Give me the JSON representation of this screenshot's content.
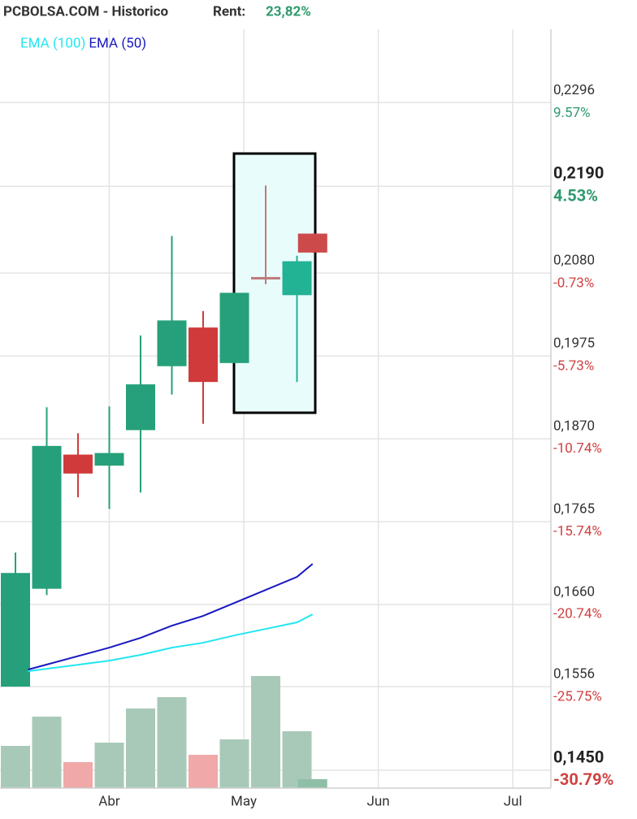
{
  "chart_data": {
    "type": "candlestick",
    "title": "PCBOLSA.COM - Historico",
    "subtitle_label": "Rent:",
    "subtitle_value": "23,82%",
    "x": [
      0,
      1,
      2,
      3,
      4,
      5,
      6,
      7,
      8,
      9,
      9.5
    ],
    "open": [
      0.1556,
      0.168,
      0.185,
      0.1836,
      0.1881,
      0.1962,
      0.2011,
      0.1966,
      0.2075,
      0.2052,
      0.213
    ],
    "high": [
      0.1726,
      0.191,
      0.1877,
      0.1911,
      0.2001,
      0.2127,
      0.2032,
      0.2055,
      0.2191,
      0.2102,
      0.213
    ],
    "low": [
      0.1556,
      0.1672,
      0.1796,
      0.1781,
      0.1802,
      0.1926,
      0.1889,
      0.1966,
      0.2066,
      0.1942,
      0.2106
    ],
    "close": [
      0.17,
      0.1861,
      0.1826,
      0.1852,
      0.1939,
      0.202,
      0.1942,
      0.2055,
      0.2072,
      0.2095,
      0.2106
    ],
    "colors": [
      "#26a07a",
      "#26a07a",
      "#d03a3a",
      "#26a07a",
      "#26a07a",
      "#26a07a",
      "#d03a3a",
      "#26a07a",
      "#c07a7a",
      "#22b294",
      "#cc4a4a"
    ],
    "series": [
      {
        "name": "EMA (100)",
        "color": "#22e6f0",
        "x": [
          0.4,
          3,
          4,
          5,
          6,
          7,
          8,
          9,
          9.5
        ],
        "values": [
          0.15755,
          0.15889,
          0.15962,
          0.16054,
          0.16116,
          0.16209,
          0.16291,
          0.16374,
          0.16476
        ]
      },
      {
        "name": "EMA (50)",
        "color": "#1818c0",
        "x": [
          0.4,
          3,
          4,
          5,
          6,
          7,
          8,
          9,
          9.5
        ],
        "values": [
          0.15776,
          0.16054,
          0.16178,
          0.16332,
          0.16456,
          0.16621,
          0.16785,
          0.1695,
          0.17115
        ]
      }
    ],
    "volume": {
      "values": [
        52,
        88,
        32,
        56,
        98,
        112,
        41,
        60,
        138,
        70,
        11
      ],
      "colors": [
        "#a9c9b8",
        "#a9c9b8",
        "#f0a8a8",
        "#a9c9b8",
        "#a9c9b8",
        "#a9c9b8",
        "#f0a8a8",
        "#a9c9b8",
        "#a9c9b8",
        "#a9c9b8",
        "#8fbfa8"
      ],
      "ylim": [
        0,
        150
      ]
    },
    "xlim": [
      -0.494,
      17.117
    ],
    "xticks": [
      {
        "value": 3,
        "label": "Abr"
      },
      {
        "value": 7.3,
        "label": "May"
      },
      {
        "value": 11.6,
        "label": "Jun"
      },
      {
        "value": 15.9,
        "label": "Jul"
      }
    ],
    "ylim": [
      0.14274,
      0.2426
    ],
    "yticks": [
      {
        "value": 0.2296,
        "label": "0,2296"
      },
      {
        "value": 0.219,
        "label": "0,2190"
      },
      {
        "value": 0.208,
        "label": "0,2080"
      },
      {
        "value": 0.1975,
        "label": "0,1975"
      },
      {
        "value": 0.187,
        "label": "0,1870"
      },
      {
        "value": 0.1765,
        "label": "0,1765"
      },
      {
        "value": 0.166,
        "label": "0,1660"
      },
      {
        "value": 0.1556,
        "label": "0,1556"
      },
      {
        "value": 0.145,
        "label": "0,1450"
      }
    ],
    "y2lim": [
      -31.89,
      15.79
    ],
    "y2ticks": [
      {
        "value": 9.57,
        "label": "9.57%"
      },
      {
        "value": 4.53,
        "label": "4.53%"
      },
      {
        "value": -0.73,
        "label": "-0.73%"
      },
      {
        "value": -5.73,
        "label": "-5.73%"
      },
      {
        "value": -10.74,
        "label": "-10.74%"
      },
      {
        "value": -15.74,
        "label": "-15.74%"
      },
      {
        "value": -20.74,
        "label": "-20.74%"
      },
      {
        "value": -25.75,
        "label": "-25.75%"
      },
      {
        "value": -30.79,
        "label": "-30.79%"
      }
    ],
    "grid": true
  }
}
